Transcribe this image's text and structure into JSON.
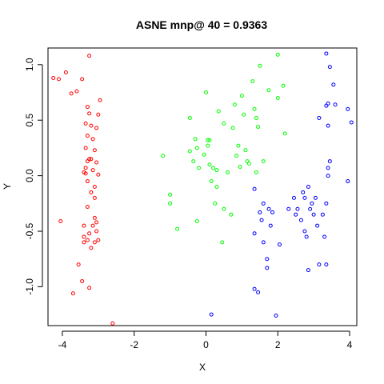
{
  "chart_data": {
    "type": "scatter",
    "title": "ASNE mnp@ 40 = 0.9363",
    "xlabel": "X",
    "ylabel": "Y",
    "xlim": [
      -4.4,
      4.2
    ],
    "ylim": [
      -1.35,
      1.15
    ],
    "xticks": [
      -4,
      -2,
      0,
      2,
      4
    ],
    "yticks": [
      -1.0,
      -0.5,
      0.0,
      0.5,
      1.0
    ],
    "xtick_labels": [
      "-4",
      "-2",
      "0",
      "2",
      "4"
    ],
    "ytick_labels": [
      "-1.0",
      "-0.5",
      "0.0",
      "0.5",
      "1.0"
    ],
    "grid": false,
    "marker": "open-circle",
    "series": [
      {
        "color": "#ff0000",
        "points": [
          [
            -4.25,
            0.88
          ],
          [
            -4.1,
            0.87
          ],
          [
            -3.9,
            0.93
          ],
          [
            -3.75,
            0.74
          ],
          [
            -3.6,
            0.76
          ],
          [
            -3.45,
            0.87
          ],
          [
            -3.25,
            1.08
          ],
          [
            -3.3,
            0.62
          ],
          [
            -3.25,
            0.56
          ],
          [
            -3.35,
            0.47
          ],
          [
            -3.2,
            0.45
          ],
          [
            -3.05,
            0.43
          ],
          [
            -2.95,
            0.68
          ],
          [
            -3.0,
            0.55
          ],
          [
            -3.3,
            0.36
          ],
          [
            -3.15,
            0.33
          ],
          [
            -3.35,
            0.25
          ],
          [
            -3.1,
            0.23
          ],
          [
            -3.25,
            0.15
          ],
          [
            -3.2,
            0.15
          ],
          [
            -3.3,
            0.13
          ],
          [
            -3.05,
            0.12
          ],
          [
            -3.35,
            0.07
          ],
          [
            -3.15,
            0.05
          ],
          [
            -3.4,
            0.03
          ],
          [
            -3.35,
            0.02
          ],
          [
            -3.0,
            0.01
          ],
          [
            -3.3,
            -0.05
          ],
          [
            -3.1,
            -0.1
          ],
          [
            -3.2,
            -0.15
          ],
          [
            -3.1,
            -0.2
          ],
          [
            -3.3,
            -0.28
          ],
          [
            -3.1,
            -0.38
          ],
          [
            -3.05,
            -0.42
          ],
          [
            -3.15,
            -0.45
          ],
          [
            -3.4,
            -0.45
          ],
          [
            -3.05,
            -0.5
          ],
          [
            -3.25,
            -0.52
          ],
          [
            -3.4,
            -0.55
          ],
          [
            -3.0,
            -0.58
          ],
          [
            -3.3,
            -0.58
          ],
          [
            -3.1,
            -0.6
          ],
          [
            -3.2,
            -0.65
          ],
          [
            -3.4,
            -0.6
          ],
          [
            -4.05,
            -0.41
          ],
          [
            -3.55,
            -0.8
          ],
          [
            -3.45,
            -0.95
          ],
          [
            -3.25,
            -1.01
          ],
          [
            -3.7,
            -1.06
          ],
          [
            -2.6,
            -1.33
          ]
        ]
      },
      {
        "color": "#00ff00",
        "points": [
          [
            -1.2,
            0.18
          ],
          [
            -1.0,
            -0.17
          ],
          [
            -1.0,
            -0.25
          ],
          [
            -0.8,
            -0.48
          ],
          [
            -0.45,
            0.52
          ],
          [
            -0.45,
            0.22
          ],
          [
            -0.35,
            0.13
          ],
          [
            -0.3,
            0.33
          ],
          [
            -0.25,
            0.25
          ],
          [
            -0.2,
            0.07
          ],
          [
            -0.25,
            -0.41
          ],
          [
            0.0,
            0.75
          ],
          [
            0.05,
            0.32
          ],
          [
            0.1,
            0.32
          ],
          [
            0.05,
            0.27
          ],
          [
            -0.05,
            0.19
          ],
          [
            0.1,
            0.1
          ],
          [
            0.2,
            0.07
          ],
          [
            0.3,
            0.05
          ],
          [
            0.15,
            -0.05
          ],
          [
            0.3,
            -0.1
          ],
          [
            0.25,
            -0.25
          ],
          [
            0.35,
            0.58
          ],
          [
            0.5,
            0.47
          ],
          [
            0.6,
            0.03
          ],
          [
            0.5,
            -0.3
          ],
          [
            0.45,
            -0.6
          ],
          [
            0.75,
            0.43
          ],
          [
            0.8,
            0.64
          ],
          [
            0.85,
            0.18
          ],
          [
            0.9,
            0.27
          ],
          [
            0.95,
            0.08
          ],
          [
            0.7,
            -0.35
          ],
          [
            1.0,
            0.72
          ],
          [
            1.05,
            0.55
          ],
          [
            1.1,
            0.23
          ],
          [
            1.15,
            0.13
          ],
          [
            1.2,
            0.11
          ],
          [
            1.3,
            0.85
          ],
          [
            1.35,
            0.6
          ],
          [
            1.4,
            0.52
          ],
          [
            1.45,
            0.44
          ],
          [
            1.4,
            0.03
          ],
          [
            1.5,
            0.99
          ],
          [
            1.6,
            0.13
          ],
          [
            1.75,
            0.77
          ],
          [
            2.0,
            1.09
          ],
          [
            2.0,
            0.7
          ],
          [
            2.15,
            0.81
          ],
          [
            2.2,
            0.38
          ]
        ]
      },
      {
        "color": "#0000ff",
        "points": [
          [
            3.35,
            1.1
          ],
          [
            3.45,
            0.98
          ],
          [
            3.55,
            0.82
          ],
          [
            3.35,
            0.63
          ],
          [
            3.4,
            0.65
          ],
          [
            3.6,
            0.64
          ],
          [
            3.15,
            0.52
          ],
          [
            3.4,
            0.45
          ],
          [
            3.95,
            0.6
          ],
          [
            4.05,
            0.48
          ],
          [
            3.45,
            0.13
          ],
          [
            3.4,
            0.07
          ],
          [
            3.4,
            0.0
          ],
          [
            3.95,
            -0.05
          ],
          [
            1.35,
            -0.12
          ],
          [
            1.6,
            -0.25
          ],
          [
            1.75,
            -0.3
          ],
          [
            1.5,
            -0.33
          ],
          [
            1.85,
            -0.33
          ],
          [
            1.55,
            -0.4
          ],
          [
            1.35,
            -0.52
          ],
          [
            1.8,
            -0.45
          ],
          [
            1.6,
            -0.6
          ],
          [
            2.05,
            -0.62
          ],
          [
            1.7,
            -0.75
          ],
          [
            1.7,
            -0.83
          ],
          [
            1.35,
            -1.02
          ],
          [
            1.45,
            -1.05
          ],
          [
            2.3,
            -0.3
          ],
          [
            2.45,
            -0.2
          ],
          [
            2.5,
            -0.35
          ],
          [
            2.55,
            -0.3
          ],
          [
            2.65,
            -0.4
          ],
          [
            2.7,
            -0.15
          ],
          [
            2.75,
            -0.2
          ],
          [
            2.75,
            -0.5
          ],
          [
            2.8,
            -0.55
          ],
          [
            2.85,
            -0.1
          ],
          [
            2.9,
            -0.3
          ],
          [
            2.95,
            -0.25
          ],
          [
            3.0,
            -0.35
          ],
          [
            3.05,
            -0.2
          ],
          [
            3.1,
            -0.45
          ],
          [
            3.25,
            -0.35
          ],
          [
            3.3,
            -0.55
          ],
          [
            3.35,
            -0.25
          ],
          [
            3.15,
            -0.8
          ],
          [
            2.85,
            -0.85
          ],
          [
            3.35,
            -0.8
          ],
          [
            0.15,
            -1.25
          ],
          [
            1.95,
            -1.26
          ]
        ]
      }
    ]
  }
}
